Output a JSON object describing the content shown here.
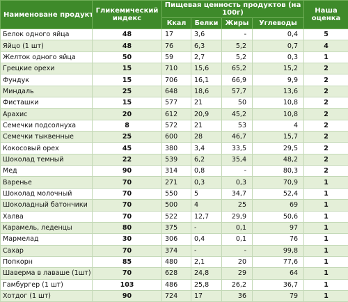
{
  "header": {
    "product": "Наименоване продукта",
    "gi": "Гликемический индекс",
    "nutrition": "Пищевая ценность продуктов (на 100г)",
    "kcal": "Ккал",
    "protein": "Белки",
    "fat": "Жиры",
    "carbs": "Углеводы",
    "rating": "Наша оценка"
  },
  "rows": [
    {
      "name": "Белок одного яйца",
      "gi": "48",
      "kcal": "17",
      "protein": "3,6",
      "fat": "-",
      "carbs": "0,4",
      "rating": "5"
    },
    {
      "name": "Яйцо (1 шт)",
      "gi": "48",
      "kcal": "76",
      "protein": "6,3",
      "fat": "5,2",
      "carbs": "0,7",
      "rating": "4"
    },
    {
      "name": "Желток одного яйца",
      "gi": "50",
      "kcal": "59",
      "protein": "2,7",
      "fat": "5,2",
      "carbs": "0,3",
      "rating": "1"
    },
    {
      "name": "Грецкие орехи",
      "gi": "15",
      "kcal": "710",
      "protein": "15,6",
      "fat": "65,2",
      "carbs": "15,2",
      "rating": "2"
    },
    {
      "name": "Фундук",
      "gi": "15",
      "kcal": "706",
      "protein": "16,1",
      "fat": "66,9",
      "carbs": "9,9",
      "rating": "2"
    },
    {
      "name": "Миндаль",
      "gi": "25",
      "kcal": "648",
      "protein": "18,6",
      "fat": "57,7",
      "carbs": "13,6",
      "rating": "2"
    },
    {
      "name": "Фисташки",
      "gi": "15",
      "kcal": "577",
      "protein": "21",
      "fat": "50",
      "carbs": "10,8",
      "rating": "2"
    },
    {
      "name": "Арахис",
      "gi": "20",
      "kcal": "612",
      "protein": "20,9",
      "fat": "45,2",
      "carbs": "10,8",
      "rating": "2"
    },
    {
      "name": "Семечки подсолнуха",
      "gi": "8",
      "kcal": "572",
      "protein": "21",
      "fat": "53",
      "carbs": "4",
      "rating": "2"
    },
    {
      "name": "Семечки тыквенные",
      "gi": "25",
      "kcal": "600",
      "protein": "28",
      "fat": "46,7",
      "carbs": "15,7",
      "rating": "2"
    },
    {
      "name": "Кокосовый орех",
      "gi": "45",
      "kcal": "380",
      "protein": "3,4",
      "fat": "33,5",
      "carbs": "29,5",
      "rating": "2"
    },
    {
      "name": "Шоколад темный",
      "gi": "22",
      "kcal": "539",
      "protein": "6,2",
      "fat": "35,4",
      "carbs": "48,2",
      "rating": "2"
    },
    {
      "name": "Мед",
      "gi": "90",
      "kcal": "314",
      "protein": "0,8",
      "fat": "-",
      "carbs": "80,3",
      "rating": "2"
    },
    {
      "name": "Варенье",
      "gi": "70",
      "kcal": "271",
      "protein": "0,3",
      "fat": "0,3",
      "carbs": "70,9",
      "rating": "1"
    },
    {
      "name": "Шоколад молочный",
      "gi": "70",
      "kcal": "550",
      "protein": "5",
      "fat": "34,7",
      "carbs": "52,4",
      "rating": "1"
    },
    {
      "name": "Шоколадный батончики",
      "gi": "70",
      "kcal": "500",
      "protein": "4",
      "fat": "25",
      "carbs": "69",
      "rating": "1"
    },
    {
      "name": "Халва",
      "gi": "70",
      "kcal": "522",
      "protein": "12,7",
      "fat": "29,9",
      "carbs": "50,6",
      "rating": "1"
    },
    {
      "name": "Карамель, леденцы",
      "gi": "80",
      "kcal": "375",
      "protein": "-",
      "fat": "0,1",
      "carbs": "97",
      "rating": "1"
    },
    {
      "name": "Мармелад",
      "gi": "30",
      "kcal": "306",
      "protein": "0,4",
      "fat": "0,1",
      "carbs": "76",
      "rating": "1"
    },
    {
      "name": "Сахар",
      "gi": "70",
      "kcal": "374",
      "protein": "-",
      "fat": "-",
      "carbs": "99,8",
      "rating": "1"
    },
    {
      "name": "Попкорн",
      "gi": "85",
      "kcal": "480",
      "protein": "2,1",
      "fat": "20",
      "carbs": "77,6",
      "rating": "1"
    },
    {
      "name": "Шаверма в лаваше (1шт)",
      "gi": "70",
      "kcal": "628",
      "protein": "24,8",
      "fat": "29",
      "carbs": "64",
      "rating": "1"
    },
    {
      "name": "Гамбургер (1 шт)",
      "gi": "103",
      "kcal": "486",
      "protein": "25,8",
      "fat": "26,2",
      "carbs": "36,7",
      "rating": "1"
    },
    {
      "name": "Хотдог (1 шт)",
      "gi": "90",
      "kcal": "724",
      "protein": "17",
      "fat": "36",
      "carbs": "79",
      "rating": "1"
    }
  ]
}
